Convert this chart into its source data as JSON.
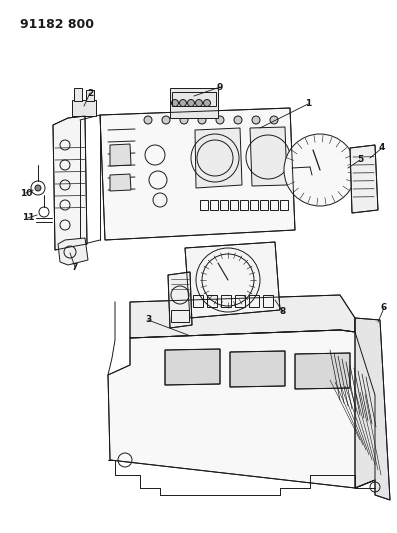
{
  "bg_color": "#ffffff",
  "line_color": "#1a1a1a",
  "title_text": "91182 800",
  "title_fontsize": 9,
  "label_fontsize": 6.5,
  "figsize": [
    3.97,
    5.33
  ],
  "dpi": 100
}
